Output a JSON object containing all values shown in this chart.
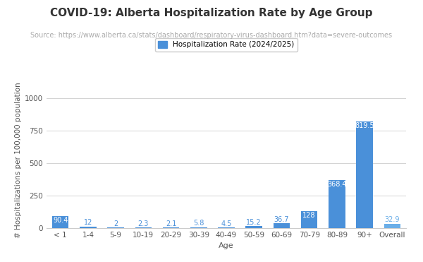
{
  "title": "COVID-19: Alberta Hospitalization Rate by Age Group",
  "subtitle": "Source: https://www.alberta.ca/stats/dashboard/respiratory-virus-dashboard.htm?data=severe-outcomes",
  "xlabel": "Age",
  "ylabel": "# Hospitalizations per 100,000 population",
  "legend_label": "Hospitalization Rate (2024/2025)",
  "categories": [
    "< 1",
    "1-4",
    "5-9",
    "10-19",
    "20-29",
    "30-39",
    "40-49",
    "50-59",
    "60-69",
    "70-79",
    "80-89",
    "90+",
    "Overall"
  ],
  "values": [
    90.4,
    12,
    2,
    2.3,
    2.1,
    5.8,
    4.5,
    15.2,
    36.7,
    128,
    368.4,
    819.5,
    32.9
  ],
  "bar_color": "#4A90D9",
  "bar_color_overall": "#6aaee8",
  "ylim": [
    0,
    1050
  ],
  "yticks": [
    0,
    250,
    500,
    750,
    1000
  ],
  "background_color": "#ffffff",
  "title_fontsize": 11,
  "subtitle_fontsize": 7,
  "label_fontsize": 7,
  "axis_label_fontsize": 8,
  "tick_fontsize": 7.5,
  "legend_fontsize": 7.5
}
